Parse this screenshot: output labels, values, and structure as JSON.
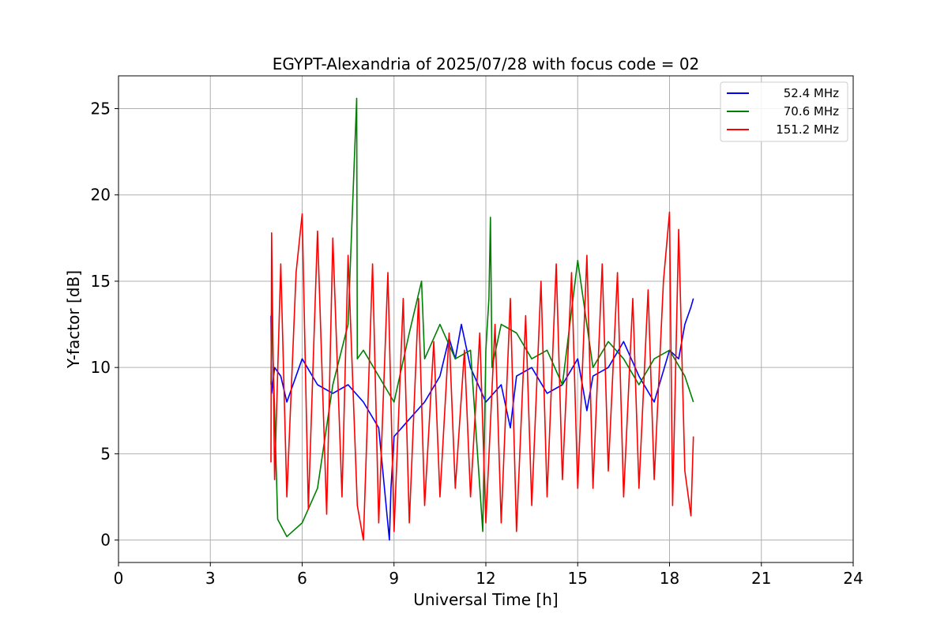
{
  "chart_data": {
    "type": "line",
    "title": "EGYPT-Alexandria of 2025/07/28 with focus code = 02",
    "xlabel": "Universal Time [h]",
    "ylabel": "Y-factor [dB]",
    "xlim": [
      0,
      24
    ],
    "ylim": [
      -1.3,
      26.9
    ],
    "xticks": [
      0,
      3,
      6,
      9,
      12,
      15,
      18,
      21,
      24
    ],
    "yticks": [
      0,
      5,
      10,
      15,
      20,
      25
    ],
    "grid": true,
    "legend_position": "top-right",
    "series": [
      {
        "name": "52.4 MHz",
        "color": "#0000ff",
        "x": [
          4.98,
          5.0,
          5.1,
          5.3,
          5.5,
          6.0,
          6.5,
          7.0,
          7.5,
          8.0,
          8.5,
          8.85,
          8.9,
          9.0,
          9.5,
          10.0,
          10.5,
          10.8,
          11.0,
          11.2,
          11.5,
          12.0,
          12.5,
          12.8,
          13.0,
          13.5,
          14.0,
          14.5,
          15.0,
          15.3,
          15.5,
          16.0,
          16.5,
          17.0,
          17.5,
          18.0,
          18.3,
          18.5,
          18.7,
          18.78
        ],
        "y": [
          13.0,
          8.5,
          10.0,
          9.5,
          8.0,
          10.5,
          9.0,
          8.5,
          9.0,
          8.0,
          6.5,
          0.0,
          3.0,
          6.0,
          7.0,
          8.0,
          9.5,
          11.7,
          10.5,
          12.5,
          10.0,
          8.0,
          9.0,
          6.5,
          9.5,
          10.0,
          8.5,
          9.0,
          10.5,
          7.5,
          9.5,
          10.0,
          11.5,
          9.5,
          8.0,
          11.0,
          10.5,
          12.5,
          13.5,
          14.0
        ]
      },
      {
        "name": "70.6 MHz",
        "color": "#008000",
        "x": [
          4.98,
          5.0,
          5.2,
          5.5,
          6.0,
          6.5,
          7.0,
          7.5,
          7.78,
          7.8,
          8.0,
          8.5,
          9.0,
          9.5,
          9.9,
          10.0,
          10.5,
          11.0,
          11.5,
          11.9,
          12.0,
          12.1,
          12.15,
          12.2,
          12.5,
          13.0,
          13.5,
          14.0,
          14.5,
          15.0,
          15.5,
          16.0,
          16.5,
          17.0,
          17.5,
          18.0,
          18.5,
          18.78
        ],
        "y": [
          9.0,
          13.5,
          1.2,
          0.2,
          1.0,
          3.0,
          9.0,
          12.5,
          25.6,
          10.5,
          11.0,
          9.5,
          8.0,
          12.0,
          15.0,
          10.5,
          12.5,
          10.5,
          11.0,
          0.5,
          11.0,
          14.0,
          18.7,
          10.0,
          12.5,
          12.0,
          10.5,
          11.0,
          9.0,
          16.2,
          10.0,
          11.5,
          10.5,
          9.0,
          10.5,
          11.0,
          9.5,
          8.0
        ]
      },
      {
        "name": "151.2 MHz",
        "color": "#ff0000",
        "x": [
          4.98,
          5.0,
          5.1,
          5.3,
          5.5,
          5.8,
          6.0,
          6.2,
          6.5,
          6.8,
          7.0,
          7.3,
          7.5,
          7.8,
          8.0,
          8.3,
          8.5,
          8.8,
          9.0,
          9.3,
          9.5,
          9.8,
          10.0,
          10.3,
          10.5,
          10.8,
          11.0,
          11.3,
          11.5,
          11.8,
          12.0,
          12.3,
          12.5,
          12.8,
          13.0,
          13.3,
          13.5,
          13.8,
          14.0,
          14.3,
          14.5,
          14.8,
          15.0,
          15.3,
          15.5,
          15.8,
          16.0,
          16.3,
          16.5,
          16.8,
          17.0,
          17.3,
          17.5,
          17.8,
          18.0,
          18.1,
          18.3,
          18.5,
          18.7,
          18.78
        ],
        "y": [
          4.5,
          17.8,
          3.5,
          16.0,
          2.5,
          15.5,
          18.9,
          1.8,
          17.9,
          1.5,
          17.5,
          2.5,
          16.5,
          2.0,
          0.0,
          16.0,
          1.0,
          15.5,
          0.5,
          14.0,
          1.0,
          14.0,
          2.0,
          11.5,
          2.5,
          12.0,
          3.0,
          11.0,
          2.5,
          12.0,
          1.0,
          12.5,
          1.0,
          14.0,
          0.5,
          13.0,
          2.0,
          15.0,
          2.5,
          16.0,
          3.5,
          15.5,
          3.0,
          16.5,
          3.0,
          16.0,
          4.0,
          15.5,
          2.5,
          14.0,
          3.0,
          14.5,
          3.5,
          15.0,
          19.0,
          2.0,
          18.0,
          4.0,
          1.4,
          6.0
        ]
      }
    ]
  }
}
